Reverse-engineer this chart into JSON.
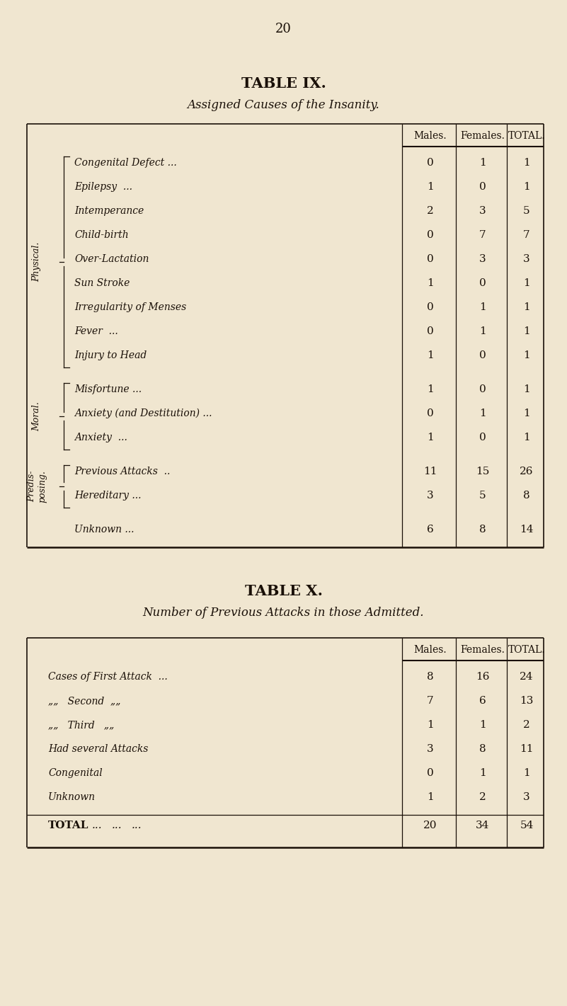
{
  "bg_color": "#f0e6d0",
  "text_color": "#1a1008",
  "page_number": "20",
  "fig_width": 8.01,
  "fig_height": 14.21,
  "fig_dpi": 100,
  "t9_title": "TABLE IX.",
  "t9_subtitle": "Assigned Causes of the Insanity.",
  "t10_title": "TABLE X.",
  "t10_subtitle": "Number of Previous Attacks in those Admitted.",
  "col_headers": [
    "Males.",
    "Females.",
    "TOTAL."
  ],
  "t9_sections": [
    {
      "label": "Physical.",
      "rows": [
        [
          "Congenital Defect ...",
          "...",
          "...",
          "0",
          "1",
          "1"
        ],
        [
          "Epilepsy  ...",
          "...",
          "..",
          "....",
          "1",
          "0",
          "1"
        ],
        [
          "Intemperance",
          "...",
          "...",
          "...",
          "2",
          "3",
          "5"
        ],
        [
          "Child-birth",
          "...",
          "...",
          "...",
          "0",
          "7",
          "7"
        ],
        [
          "Over-Lactation",
          "...",
          "...",
          "...",
          "0",
          "3",
          "3"
        ],
        [
          "Sun Stroke",
          "...",
          "...",
          "...",
          "1",
          "0",
          "1"
        ],
        [
          "Irregularity of Menses",
          "..",
          "...",
          "0",
          "1",
          "1"
        ],
        [
          "Fever  ...",
          "...",
          "...",
          "...",
          "0",
          "1",
          "1"
        ],
        [
          "Injury to Head",
          "...",
          "...",
          "...",
          "1",
          "0",
          "1"
        ]
      ]
    },
    {
      "label": "Moral.",
      "rows": [
        [
          "Misfortune ...",
          "...",
          "...",
          "...",
          "1",
          "0",
          "1"
        ],
        [
          "Anxiety (and Destitution) ...",
          "...",
          "0",
          "1",
          "1"
        ],
        [
          "Anxiety  ...",
          "...",
          "..",
          "...",
          "1",
          "0",
          "1"
        ]
      ]
    },
    {
      "label": "Predis-\nposing.",
      "rows": [
        [
          "Previous Attacks  ..",
          "...",
          "...",
          "11",
          "15",
          "26"
        ],
        [
          "Hereditary ...",
          "..",
          "...",
          "...",
          "3",
          "5",
          "8"
        ]
      ]
    }
  ],
  "t9_unknown": [
    "Unknown ...",
    "...",
    "...",
    "...",
    "6",
    "8",
    "14"
  ],
  "t10_rows": [
    [
      "Cases of First Attack  ...",
      "...",
      "...",
      "8",
      "16",
      "24"
    ],
    [
      "„„   Second  „„",
      "...",
      "...",
      "...",
      "7",
      "6",
      "13"
    ],
    [
      "„„   Third   „„",
      "...",
      "...",
      "...",
      "1",
      "1",
      "2"
    ],
    [
      "Had several Attacks",
      "...",
      "...",
      "...",
      "3",
      "8",
      "11"
    ],
    [
      "Congenital",
      "...",
      "...",
      "...",
      "...",
      "0",
      "1",
      "1"
    ],
    [
      "Unknown",
      "...",
      "...",
      "...",
      "...",
      "1",
      "2",
      "3"
    ]
  ],
  "t10_total": [
    "TOTAL",
    "...",
    "...",
    "...",
    "20",
    "34",
    "54"
  ]
}
